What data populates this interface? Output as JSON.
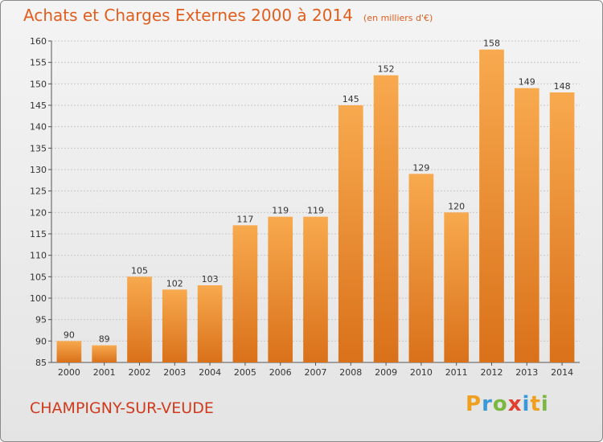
{
  "header": {
    "title": "Achats et Charges Externes 2000 à 2014",
    "unit": "(en milliers d'€)"
  },
  "footer": {
    "commune": "CHAMPIGNY-SUR-VEUDE",
    "logo": "Proxiti"
  },
  "logo_letters": [
    {
      "ch": "P",
      "color": "#f0a020"
    },
    {
      "ch": "r",
      "color": "#3a9ad9"
    },
    {
      "ch": "o",
      "color": "#7ab840"
    },
    {
      "ch": "x",
      "color": "#e04030"
    },
    {
      "ch": "i",
      "color": "#3a9ad9"
    },
    {
      "ch": "t",
      "color": "#f0a020"
    },
    {
      "ch": "i",
      "color": "#7ab840"
    }
  ],
  "colors": {
    "bar_light": "#f8a94e",
    "bar_dark": "#d9711a",
    "grid": "#c8c8c8",
    "accent": "#e05e1e"
  },
  "chart_data": {
    "type": "bar",
    "title": "Achats et Charges Externes 2000 à 2014",
    "subtitle": "(en milliers d'€)",
    "categories": [
      "2000",
      "2001",
      "2002",
      "2003",
      "2004",
      "2005",
      "2006",
      "2007",
      "2008",
      "2009",
      "2010",
      "2011",
      "2012",
      "2013",
      "2014"
    ],
    "values": [
      90,
      89,
      105,
      102,
      103,
      117,
      119,
      119,
      145,
      152,
      129,
      120,
      158,
      149,
      148
    ],
    "ylim": [
      85,
      160
    ],
    "yticks": [
      85,
      90,
      95,
      100,
      105,
      110,
      115,
      120,
      125,
      130,
      135,
      140,
      145,
      150,
      155,
      160
    ],
    "grid": true,
    "legend": "none"
  }
}
